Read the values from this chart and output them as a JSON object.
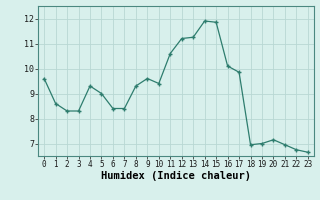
{
  "x": [
    0,
    1,
    2,
    3,
    4,
    5,
    6,
    7,
    8,
    9,
    10,
    11,
    12,
    13,
    14,
    15,
    16,
    17,
    18,
    19,
    20,
    21,
    22,
    23
  ],
  "y": [
    9.6,
    8.6,
    8.3,
    8.3,
    9.3,
    9.0,
    8.4,
    8.4,
    9.3,
    9.6,
    9.4,
    10.6,
    11.2,
    11.25,
    11.9,
    11.85,
    10.1,
    9.85,
    6.95,
    7.0,
    7.15,
    6.95,
    6.75,
    6.65
  ],
  "line_color": "#2e7d6e",
  "marker_color": "#2e7d6e",
  "bg_color": "#d8f0ec",
  "grid_color": "#b8d8d4",
  "xlabel": "Humidex (Indice chaleur)",
  "xlim": [
    -0.5,
    23.5
  ],
  "ylim": [
    6.5,
    12.5
  ],
  "yticks": [
    7,
    8,
    9,
    10,
    11,
    12
  ],
  "xticks": [
    0,
    1,
    2,
    3,
    4,
    5,
    6,
    7,
    8,
    9,
    10,
    11,
    12,
    13,
    14,
    15,
    16,
    17,
    18,
    19,
    20,
    21,
    22,
    23
  ],
  "tick_fontsize": 5.5,
  "xlabel_fontsize": 7.5
}
